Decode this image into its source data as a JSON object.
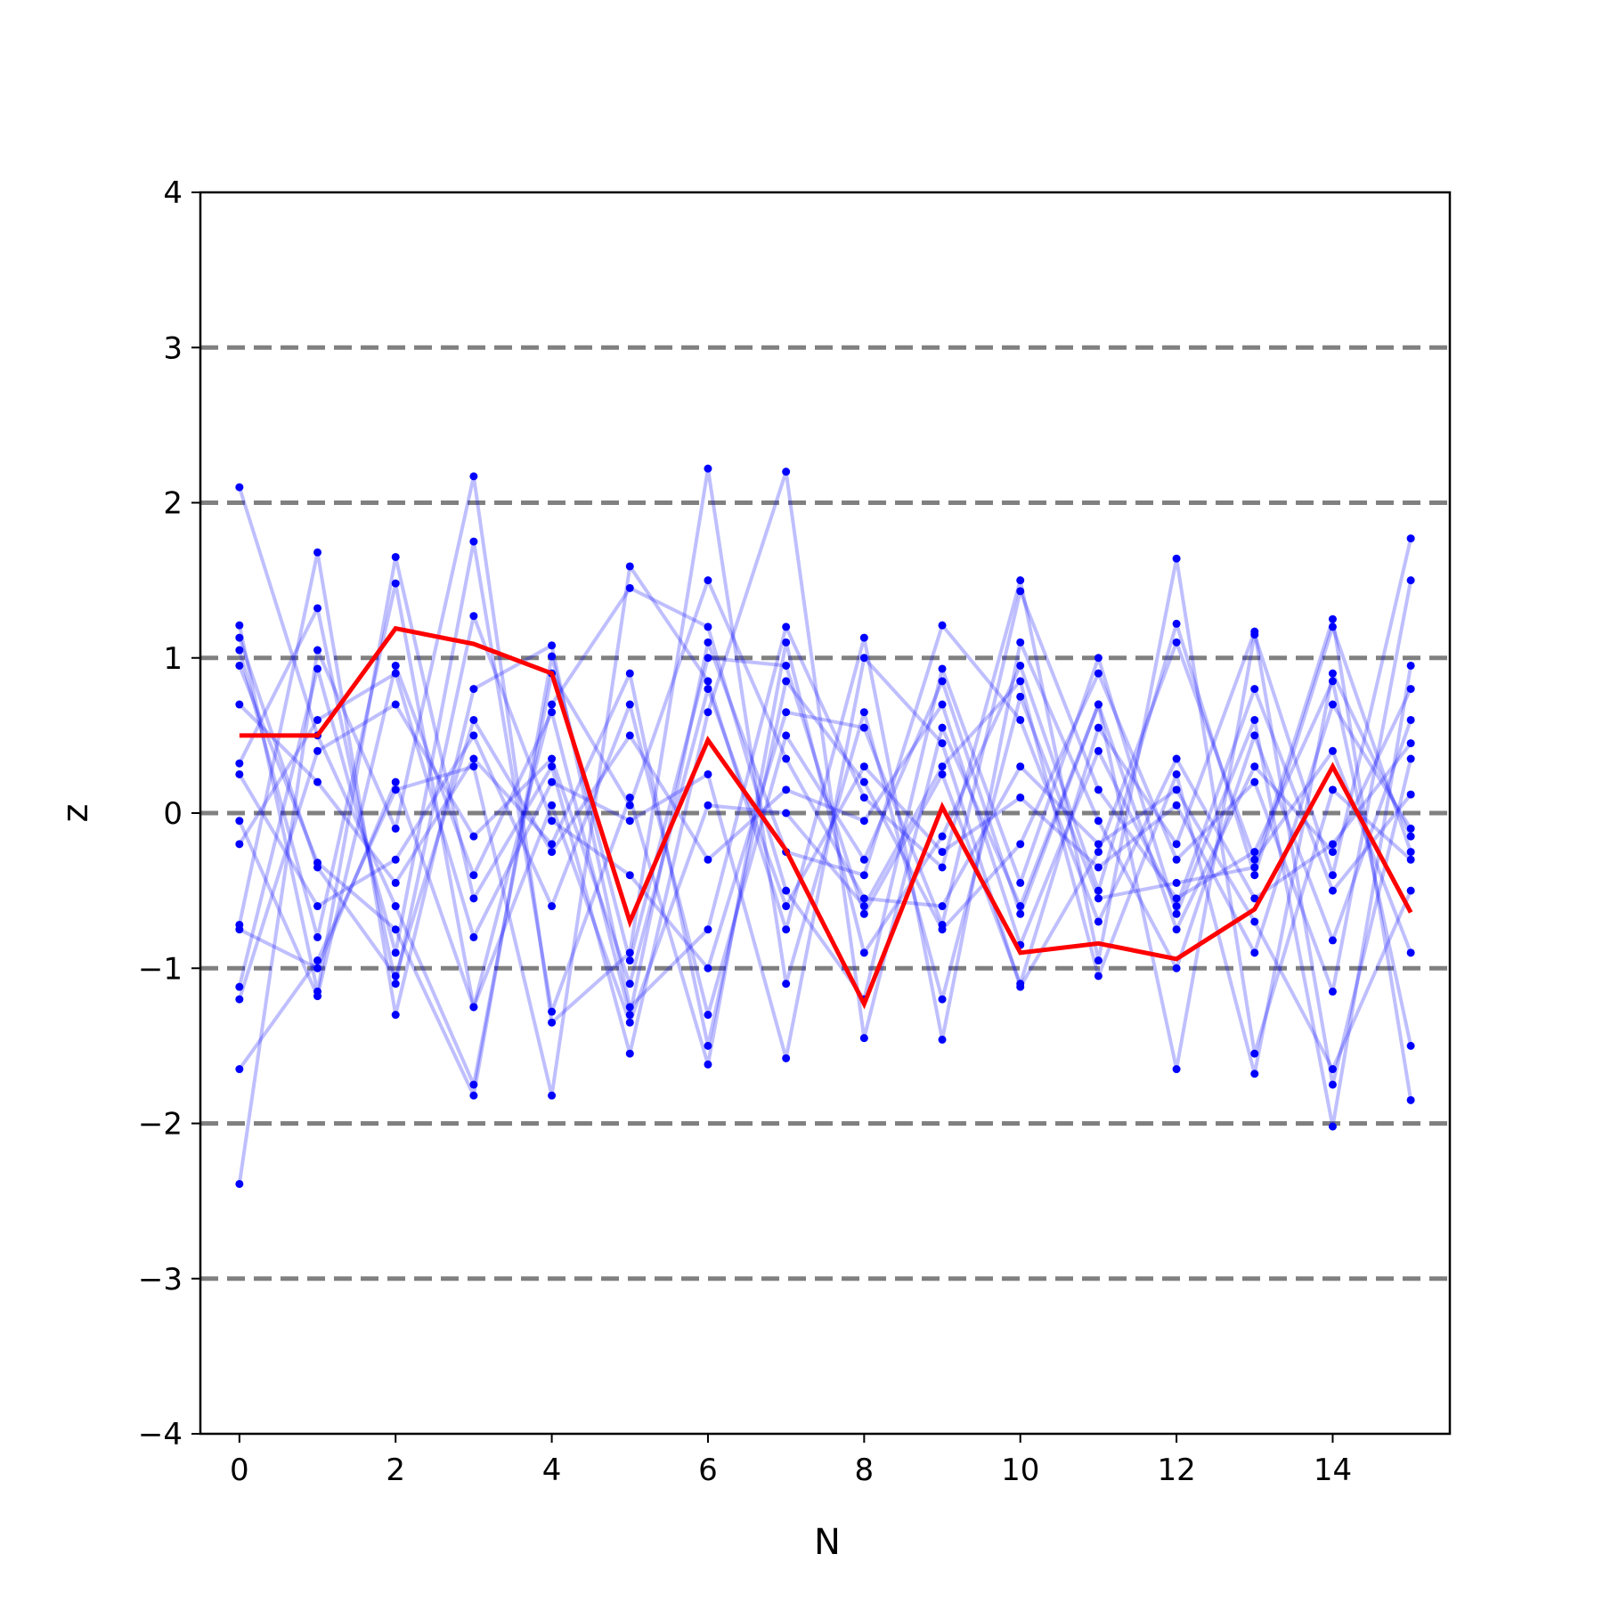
{
  "chart_data": {
    "type": "line",
    "title": "",
    "xlabel": "N",
    "ylabel": "z",
    "xlim": [
      -0.5,
      15.5
    ],
    "ylim": [
      -4,
      4
    ],
    "xticks": [
      0,
      2,
      4,
      6,
      8,
      10,
      12,
      14
    ],
    "yticks": [
      -4,
      -3,
      -2,
      -1,
      0,
      1,
      2,
      3,
      4
    ],
    "ytick_labels": [
      "−4",
      "−3",
      "−2",
      "−1",
      "0",
      "1",
      "2",
      "3",
      "4"
    ],
    "reference_lines": [
      -3,
      -2,
      -1,
      0,
      1,
      2,
      3
    ],
    "grid": false,
    "legend": "none",
    "colors": {
      "samples": "#0000ff",
      "highlight": "#ff0000",
      "reference": "#808080",
      "axes": "#000000"
    },
    "x": [
      0,
      1,
      2,
      3,
      4,
      5,
      6,
      7,
      8,
      9,
      10,
      11,
      12,
      13,
      14,
      15
    ],
    "highlight_series": {
      "values": [
        0.5,
        0.5,
        1.19,
        1.09,
        0.9,
        -0.7,
        0.47,
        -0.24,
        -1.23,
        0.04,
        -0.9,
        -0.84,
        -0.94,
        -0.62,
        0.3,
        -0.64
      ]
    },
    "sample_series": [
      {
        "values": [
          2.1,
          0.5,
          -0.6,
          -1.75,
          0.9,
          0.05,
          1.5,
          0.35,
          -0.55,
          -0.6,
          0.3,
          -0.2,
          0.15,
          -0.7,
          -1.65,
          -0.5
        ]
      },
      {
        "values": [
          -2.39,
          1.05,
          -0.1,
          2.17,
          -1.35,
          -0.9,
          2.22,
          -1.1,
          0.65,
          -1.2,
          0.75,
          -0.55,
          -0.45,
          -0.35,
          1.25,
          -1.85
        ]
      },
      {
        "values": [
          1.21,
          -1.15,
          1.65,
          -0.55,
          0.3,
          -1.55,
          0.65,
          2.2,
          -1.45,
          0.55,
          -0.6,
          0.7,
          -1.65,
          1.15,
          -0.4,
          1.77
        ]
      },
      {
        "values": [
          -0.72,
          1.68,
          -1.3,
          0.8,
          1.08,
          -1.25,
          -0.75,
          1.2,
          0.1,
          -0.35,
          1.5,
          -0.95,
          1.64,
          -1.55,
          0.15,
          -0.3
        ]
      },
      {
        "values": [
          1.05,
          -0.8,
          1.48,
          -1.25,
          0.7,
          1.45,
          1.2,
          -0.5,
          -1.2,
          0.93,
          -0.45,
          1.0,
          -0.65,
          0.6,
          -2.02,
          0.95
        ]
      },
      {
        "values": [
          -1.12,
          0.93,
          -0.9,
          1.75,
          -1.28,
          0.1,
          -1.62,
          1.1,
          -0.9,
          -0.15,
          0.95,
          -0.5,
          1.22,
          -0.4,
          1.2,
          -0.25
        ]
      },
      {
        "values": [
          -1.65,
          -0.95,
          0.15,
          0.3,
          -1.82,
          1.59,
          0.85,
          -0.75,
          1.13,
          -1.46,
          1.1,
          -0.05,
          -1.0,
          0.5,
          -0.82,
          0.6
        ]
      },
      {
        "values": [
          0.95,
          -0.32,
          -0.75,
          -1.82,
          1.01,
          -0.95,
          1.0,
          0.95,
          -0.65,
          0.25,
          -1.1,
          0.55,
          -0.2,
          1.17,
          -1.75,
          0.35
        ]
      },
      {
        "values": [
          0.32,
          1.32,
          -1.1,
          1.27,
          -0.05,
          -0.4,
          -1.0,
          0.65,
          0.55,
          -0.72,
          1.43,
          0.15,
          -0.55,
          -0.25,
          0.85,
          -1.5
        ]
      },
      {
        "values": [
          -0.05,
          -1.18,
          0.95,
          -0.4,
          0.65,
          -1.3,
          1.1,
          -0.25,
          -0.4,
          1.21,
          0.6,
          -0.7,
          0.35,
          -0.55,
          -0.2,
          0.45
        ]
      },
      {
        "values": [
          0.7,
          0.2,
          -0.45,
          0.35,
          -0.2,
          0.9,
          -1.5,
          0.85,
          0.2,
          -0.75,
          -0.2,
          0.9,
          -0.3,
          0.2,
          -1.15,
          1.5
        ]
      },
      {
        "values": [
          -0.2,
          0.6,
          0.9,
          -0.8,
          0.2,
          -0.05,
          0.25,
          -1.58,
          1.0,
          0.45,
          -1.12,
          -0.25,
          1.1,
          -0.3,
          0.4,
          -0.9
        ]
      },
      {
        "values": [
          1.13,
          -0.35,
          -1.05,
          0.6,
          -0.25,
          0.5,
          -0.3,
          0.15,
          -0.05,
          0.7,
          -0.85,
          0.4,
          -0.6,
          0.8,
          -0.5,
          0.12
        ]
      },
      {
        "values": [
          -1.2,
          0.4,
          0.7,
          -0.15,
          0.35,
          -1.1,
          0.8,
          -0.6,
          0.3,
          -0.25,
          0.1,
          -0.35,
          0.05,
          -0.9,
          0.7,
          -0.1
        ]
      },
      {
        "values": [
          0.25,
          -0.6,
          -0.3,
          0.5,
          -0.6,
          0.7,
          -1.3,
          0.5,
          -0.3,
          0.85,
          -0.65,
          0.7,
          -0.75,
          0.3,
          -0.25,
          0.8
        ]
      },
      {
        "values": [
          -0.75,
          -1.0,
          0.2,
          -1.25,
          0.05,
          -1.35,
          0.05,
          0.0,
          -0.6,
          0.3,
          0.85,
          -1.05,
          0.25,
          -1.68,
          0.9,
          -0.15
        ]
      }
    ]
  }
}
